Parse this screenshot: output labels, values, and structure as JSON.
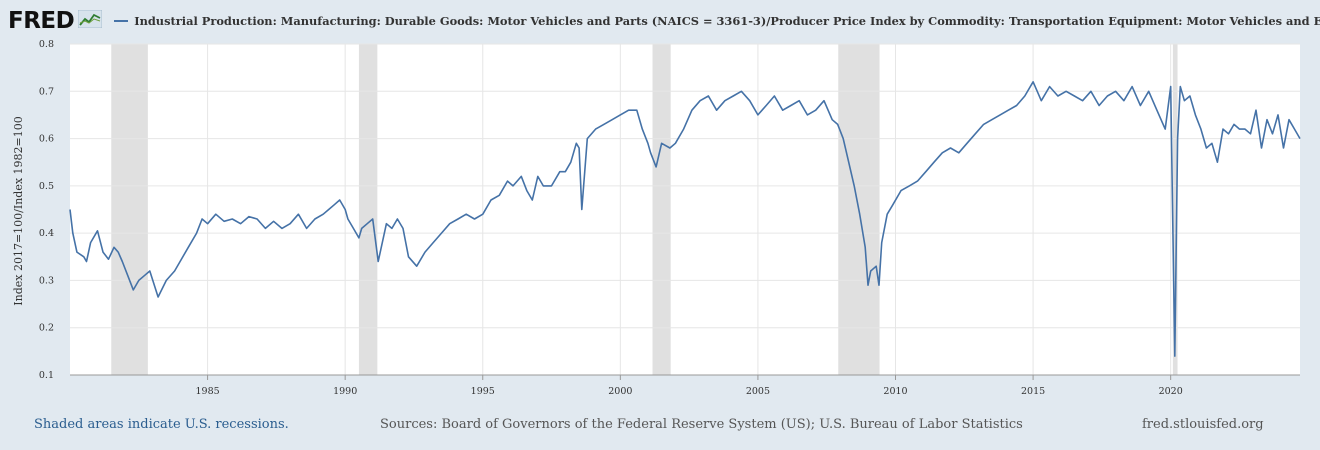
{
  "brand": {
    "logo_text": "FRED",
    "logo_icon": "chart-line-icon"
  },
  "legend": {
    "label": "Industrial Production: Manufacturing: Durable Goods: Motor Vehicles and Parts (NAICS = 3361-3)/Producer Price Index by Commodity: Transportation Equipment: Motor Vehicles and Equipment",
    "color": "#4572a7"
  },
  "footer": {
    "left": "Shaded areas indicate U.S. recessions.",
    "center": "Sources: Board of Governors of the Federal Reserve System (US); U.S. Bureau of Labor Statistics",
    "right": "fred.stlouisfed.org"
  },
  "chart_data": {
    "type": "line",
    "title": "",
    "xlabel": "",
    "ylabel": "Index 2017=100/Index 1982=100",
    "xlim": [
      1980.0,
      2024.7
    ],
    "ylim": [
      0.1,
      0.8
    ],
    "yticks": [
      "0.1",
      "0.2",
      "0.3",
      "0.4",
      "0.5",
      "0.6",
      "0.7",
      "0.8"
    ],
    "xticks": [
      "1985",
      "1990",
      "1995",
      "2000",
      "2005",
      "2010",
      "2015",
      "2020"
    ],
    "grid": true,
    "line_color": "#4572a7",
    "recession_color": "#e0e0e0",
    "recessions": [
      [
        1981.5,
        1982.83
      ],
      [
        1990.5,
        1991.17
      ],
      [
        2001.17,
        2001.83
      ],
      [
        2007.92,
        2009.42
      ],
      [
        2020.08,
        2020.25
      ]
    ],
    "series": [
      {
        "x": [
          1980.0,
          1980.1,
          1980.25,
          1980.5,
          1980.6,
          1980.75,
          1981.0,
          1981.2,
          1981.4,
          1981.6,
          1981.75,
          1981.9,
          1982.1,
          1982.3,
          1982.5,
          1982.7,
          1982.9,
          1983.2,
          1983.5,
          1983.8,
          1984.0,
          1984.3,
          1984.6,
          1984.8,
          1985.0,
          1985.3,
          1985.6,
          1985.9,
          1986.2,
          1986.5,
          1986.8,
          1987.1,
          1987.4,
          1987.7,
          1988.0,
          1988.3,
          1988.6,
          1988.9,
          1989.2,
          1989.4,
          1989.6,
          1989.8,
          1990.0,
          1990.1,
          1990.3,
          1990.5,
          1990.6,
          1990.8,
          1991.0,
          1991.2,
          1991.5,
          1991.7,
          1991.9,
          1992.1,
          1992.3,
          1992.6,
          1992.9,
          1993.2,
          1993.5,
          1993.8,
          1994.1,
          1994.4,
          1994.7,
          1995.0,
          1995.3,
          1995.6,
          1995.9,
          1996.1,
          1996.4,
          1996.6,
          1996.8,
          1997.0,
          1997.2,
          1997.5,
          1997.8,
          1998.0,
          1998.2,
          1998.4,
          1998.5,
          1998.6,
          1998.8,
          1999.1,
          1999.4,
          1999.7,
          2000.0,
          2000.3,
          2000.6,
          2000.8,
          2001.0,
          2001.1,
          2001.3,
          2001.5,
          2001.8,
          2002.0,
          2002.3,
          2002.6,
          2002.9,
          2003.2,
          2003.5,
          2003.8,
          2004.1,
          2004.4,
          2004.7,
          2005.0,
          2005.3,
          2005.6,
          2005.9,
          2006.2,
          2006.5,
          2006.8,
          2007.1,
          2007.4,
          2007.7,
          2007.9,
          2008.1,
          2008.3,
          2008.5,
          2008.7,
          2008.9,
          2009.0,
          2009.1,
          2009.3,
          2009.4,
          2009.5,
          2009.7,
          2009.9,
          2010.2,
          2010.5,
          2010.8,
          2011.1,
          2011.4,
          2011.7,
          2012.0,
          2012.3,
          2012.6,
          2012.9,
          2013.2,
          2013.5,
          2013.8,
          2014.1,
          2014.4,
          2014.7,
          2015.0,
          2015.3,
          2015.6,
          2015.9,
          2016.2,
          2016.5,
          2016.8,
          2017.1,
          2017.4,
          2017.7,
          2018.0,
          2018.3,
          2018.6,
          2018.9,
          2019.2,
          2019.5,
          2019.8,
          2020.0,
          2020.15,
          2020.25,
          2020.35,
          2020.5,
          2020.7,
          2020.9,
          2021.1,
          2021.3,
          2021.5,
          2021.7,
          2021.9,
          2022.1,
          2022.3,
          2022.5,
          2022.7,
          2022.9,
          2023.1,
          2023.3,
          2023.5,
          2023.7,
          2023.9,
          2024.1,
          2024.3,
          2024.5,
          2024.7
        ],
        "values": [
          0.45,
          0.4,
          0.36,
          0.35,
          0.34,
          0.38,
          0.405,
          0.36,
          0.345,
          0.37,
          0.36,
          0.34,
          0.31,
          0.28,
          0.3,
          0.31,
          0.32,
          0.265,
          0.3,
          0.32,
          0.34,
          0.37,
          0.4,
          0.43,
          0.42,
          0.44,
          0.425,
          0.43,
          0.42,
          0.435,
          0.43,
          0.41,
          0.425,
          0.41,
          0.42,
          0.44,
          0.41,
          0.43,
          0.44,
          0.45,
          0.46,
          0.47,
          0.45,
          0.43,
          0.41,
          0.39,
          0.41,
          0.42,
          0.43,
          0.34,
          0.42,
          0.41,
          0.43,
          0.41,
          0.35,
          0.33,
          0.36,
          0.38,
          0.4,
          0.42,
          0.43,
          0.44,
          0.43,
          0.44,
          0.47,
          0.48,
          0.51,
          0.5,
          0.52,
          0.49,
          0.47,
          0.52,
          0.5,
          0.5,
          0.53,
          0.53,
          0.55,
          0.59,
          0.58,
          0.45,
          0.6,
          0.62,
          0.63,
          0.64,
          0.65,
          0.66,
          0.66,
          0.62,
          0.59,
          0.57,
          0.54,
          0.59,
          0.58,
          0.59,
          0.62,
          0.66,
          0.68,
          0.69,
          0.66,
          0.68,
          0.69,
          0.7,
          0.68,
          0.65,
          0.67,
          0.69,
          0.66,
          0.67,
          0.68,
          0.65,
          0.66,
          0.68,
          0.64,
          0.63,
          0.6,
          0.55,
          0.5,
          0.44,
          0.37,
          0.29,
          0.32,
          0.33,
          0.29,
          0.38,
          0.44,
          0.46,
          0.49,
          0.5,
          0.51,
          0.53,
          0.55,
          0.57,
          0.58,
          0.57,
          0.59,
          0.61,
          0.63,
          0.64,
          0.65,
          0.66,
          0.67,
          0.69,
          0.72,
          0.68,
          0.71,
          0.69,
          0.7,
          0.69,
          0.68,
          0.7,
          0.67,
          0.69,
          0.7,
          0.68,
          0.71,
          0.67,
          0.7,
          0.66,
          0.62,
          0.71,
          0.14,
          0.6,
          0.71,
          0.68,
          0.69,
          0.65,
          0.62,
          0.58,
          0.59,
          0.55,
          0.62,
          0.61,
          0.63,
          0.62,
          0.62,
          0.61,
          0.66,
          0.58,
          0.64,
          0.61,
          0.65,
          0.58,
          0.64,
          0.62,
          0.6
        ]
      }
    ]
  }
}
